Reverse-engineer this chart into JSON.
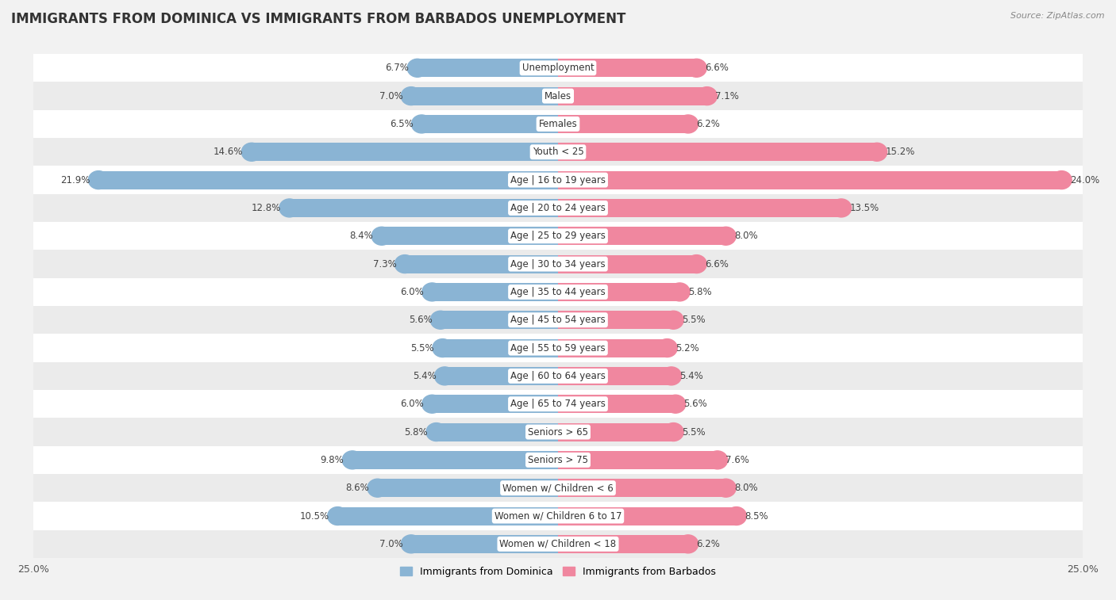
{
  "title": "IMMIGRANTS FROM DOMINICA VS IMMIGRANTS FROM BARBADOS UNEMPLOYMENT",
  "source": "Source: ZipAtlas.com",
  "categories": [
    "Unemployment",
    "Males",
    "Females",
    "Youth < 25",
    "Age | 16 to 19 years",
    "Age | 20 to 24 years",
    "Age | 25 to 29 years",
    "Age | 30 to 34 years",
    "Age | 35 to 44 years",
    "Age | 45 to 54 years",
    "Age | 55 to 59 years",
    "Age | 60 to 64 years",
    "Age | 65 to 74 years",
    "Seniors > 65",
    "Seniors > 75",
    "Women w/ Children < 6",
    "Women w/ Children 6 to 17",
    "Women w/ Children < 18"
  ],
  "dominica_values": [
    6.7,
    7.0,
    6.5,
    14.6,
    21.9,
    12.8,
    8.4,
    7.3,
    6.0,
    5.6,
    5.5,
    5.4,
    6.0,
    5.8,
    9.8,
    8.6,
    10.5,
    7.0
  ],
  "barbados_values": [
    6.6,
    7.1,
    6.2,
    15.2,
    24.0,
    13.5,
    8.0,
    6.6,
    5.8,
    5.5,
    5.2,
    5.4,
    5.6,
    5.5,
    7.6,
    8.0,
    8.5,
    6.2
  ],
  "dominica_color": "#8ab4d4",
  "barbados_color": "#f0879f",
  "xlim": 25.0,
  "background_color": "#f2f2f2",
  "row_color_odd": "#ffffff",
  "row_color_even": "#ebebeb",
  "title_fontsize": 12,
  "label_fontsize": 8.5,
  "value_fontsize": 8.5,
  "legend_fontsize": 9
}
